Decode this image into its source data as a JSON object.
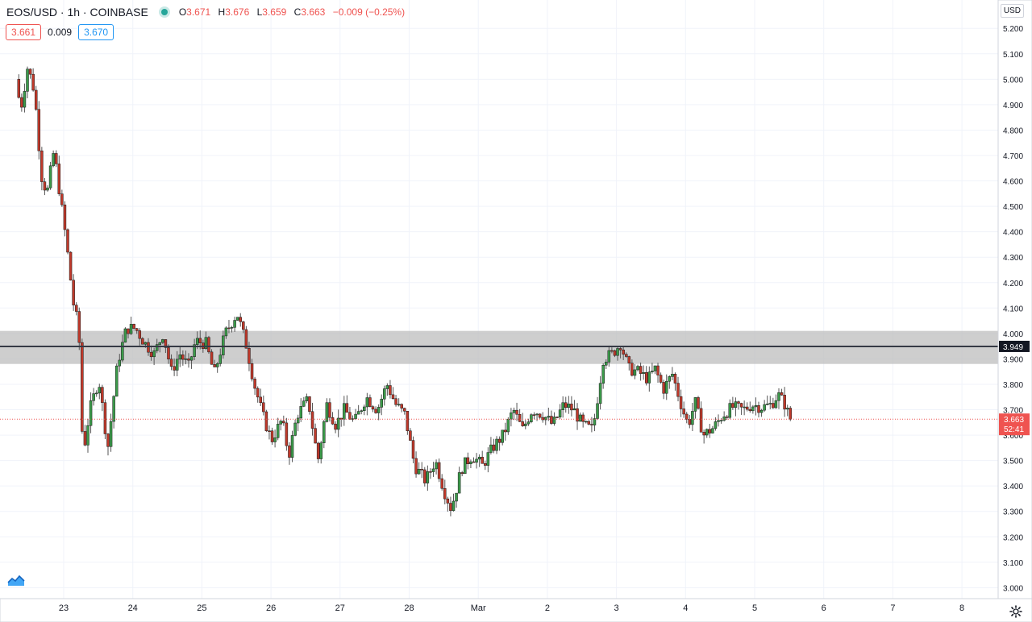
{
  "header": {
    "symbol": "EOS/USD · 1h · COINBASE",
    "open_label": "O",
    "open": "3.671",
    "high_label": "H",
    "high": "3.676",
    "low_label": "L",
    "low": "3.659",
    "close_label": "C",
    "close": "3.663",
    "change": "−0.009 (−0.25%)",
    "sell_price": "3.661",
    "spread": "0.009",
    "buy_price": "3.670",
    "currency_button": "USD"
  },
  "colors": {
    "up": "#26a69a",
    "down": "#ef5350",
    "candle_body_up": "#3b9b4a",
    "candle_body_down": "#c0392b",
    "grid": "#f0f3fa",
    "zone": "#bdbdbd",
    "level_line": "#363a45"
  },
  "icons": {
    "brand": "tradingview-logo-icon",
    "settings": "gear-icon",
    "live": "live-dot-icon"
  },
  "chart_data": {
    "type": "candlestick",
    "symbol": "EOS/USD",
    "interval": "1h",
    "exchange": "COINBASE",
    "y_axis": {
      "side": "right",
      "range": [
        2.96,
        5.28
      ],
      "ticks": [
        "5.200",
        "5.100",
        "5.000",
        "4.900",
        "4.800",
        "4.700",
        "4.600",
        "4.500",
        "4.400",
        "4.300",
        "4.200",
        "4.100",
        "4.000",
        "3.900",
        "3.800",
        "3.700",
        "3.600",
        "3.500",
        "3.400",
        "3.300",
        "3.200",
        "3.100",
        "3.000"
      ]
    },
    "x_axis": {
      "ticks": [
        "23",
        "24",
        "25",
        "26",
        "27",
        "28",
        "Mar",
        "2",
        "3",
        "4",
        "5",
        "6",
        "7",
        "8"
      ],
      "range_days": [
        22.35,
        30.6
      ]
    },
    "grid": true,
    "resistance_zone": {
      "low": 3.88,
      "high": 4.01
    },
    "horizontal_line": {
      "value": 3.949,
      "label": "3.949"
    },
    "last_price": {
      "value": 3.663,
      "label": "3.663",
      "countdown": "52:41"
    },
    "series_waypoints": [
      [
        22.35,
        5.0
      ],
      [
        22.42,
        4.88
      ],
      [
        22.52,
        5.05
      ],
      [
        22.62,
        4.95
      ],
      [
        22.72,
        4.62
      ],
      [
        22.8,
        4.55
      ],
      [
        22.9,
        4.72
      ],
      [
        23.0,
        4.52
      ],
      [
        23.08,
        4.36
      ],
      [
        23.18,
        4.12
      ],
      [
        23.26,
        4.02
      ],
      [
        23.32,
        3.52
      ],
      [
        23.42,
        3.7
      ],
      [
        23.55,
        3.82
      ],
      [
        23.68,
        3.55
      ],
      [
        23.82,
        3.88
      ],
      [
        23.95,
        4.02
      ],
      [
        24.08,
        4.02
      ],
      [
        24.22,
        3.96
      ],
      [
        24.35,
        3.92
      ],
      [
        24.48,
        4.0
      ],
      [
        24.6,
        3.85
      ],
      [
        24.72,
        3.92
      ],
      [
        24.85,
        3.87
      ],
      [
        24.95,
        3.97
      ],
      [
        25.1,
        3.96
      ],
      [
        25.22,
        3.84
      ],
      [
        25.38,
        4.0
      ],
      [
        25.55,
        4.08
      ],
      [
        25.68,
        3.96
      ],
      [
        25.8,
        3.8
      ],
      [
        25.92,
        3.68
      ],
      [
        26.05,
        3.58
      ],
      [
        26.2,
        3.66
      ],
      [
        26.3,
        3.52
      ],
      [
        26.42,
        3.68
      ],
      [
        26.58,
        3.74
      ],
      [
        26.72,
        3.5
      ],
      [
        26.85,
        3.72
      ],
      [
        26.98,
        3.64
      ],
      [
        27.1,
        3.7
      ],
      [
        27.25,
        3.65
      ],
      [
        27.42,
        3.75
      ],
      [
        27.58,
        3.7
      ],
      [
        27.72,
        3.8
      ],
      [
        27.85,
        3.72
      ],
      [
        27.98,
        3.68
      ],
      [
        28.12,
        3.48
      ],
      [
        28.28,
        3.42
      ],
      [
        28.42,
        3.5
      ],
      [
        28.55,
        3.38
      ],
      [
        28.65,
        3.31
      ],
      [
        28.8,
        3.47
      ],
      [
        28.95,
        3.52
      ],
      [
        29.1,
        3.48
      ],
      [
        29.25,
        3.55
      ],
      [
        29.4,
        3.6
      ],
      [
        29.55,
        3.7
      ],
      [
        29.68,
        3.62
      ],
      [
        29.82,
        3.7
      ],
      [
        29.98,
        3.68
      ],
      [
        30.12,
        3.64
      ],
      [
        30.28,
        3.72
      ],
      [
        30.42,
        3.7
      ],
      [
        30.55,
        3.64
      ],
      [
        30.7,
        3.62
      ],
      [
        30.85,
        3.9
      ],
      [
        30.98,
        3.92
      ],
      [
        31.1,
        3.96
      ],
      [
        31.22,
        3.86
      ],
      [
        31.35,
        3.85
      ],
      [
        31.5,
        3.82
      ],
      [
        31.6,
        3.86
      ],
      [
        31.72,
        3.78
      ],
      [
        31.85,
        3.84
      ],
      [
        32.0,
        3.7
      ],
      [
        32.08,
        3.64
      ],
      [
        32.18,
        3.73
      ],
      [
        32.3,
        3.6
      ],
      [
        32.45,
        3.63
      ],
      [
        32.58,
        3.68
      ],
      [
        32.72,
        3.71
      ],
      [
        32.88,
        3.7
      ],
      [
        33.0,
        3.72
      ],
      [
        33.15,
        3.71
      ],
      [
        33.28,
        3.72
      ],
      [
        33.38,
        3.76
      ],
      [
        33.48,
        3.72
      ],
      [
        33.55,
        3.663
      ]
    ]
  }
}
